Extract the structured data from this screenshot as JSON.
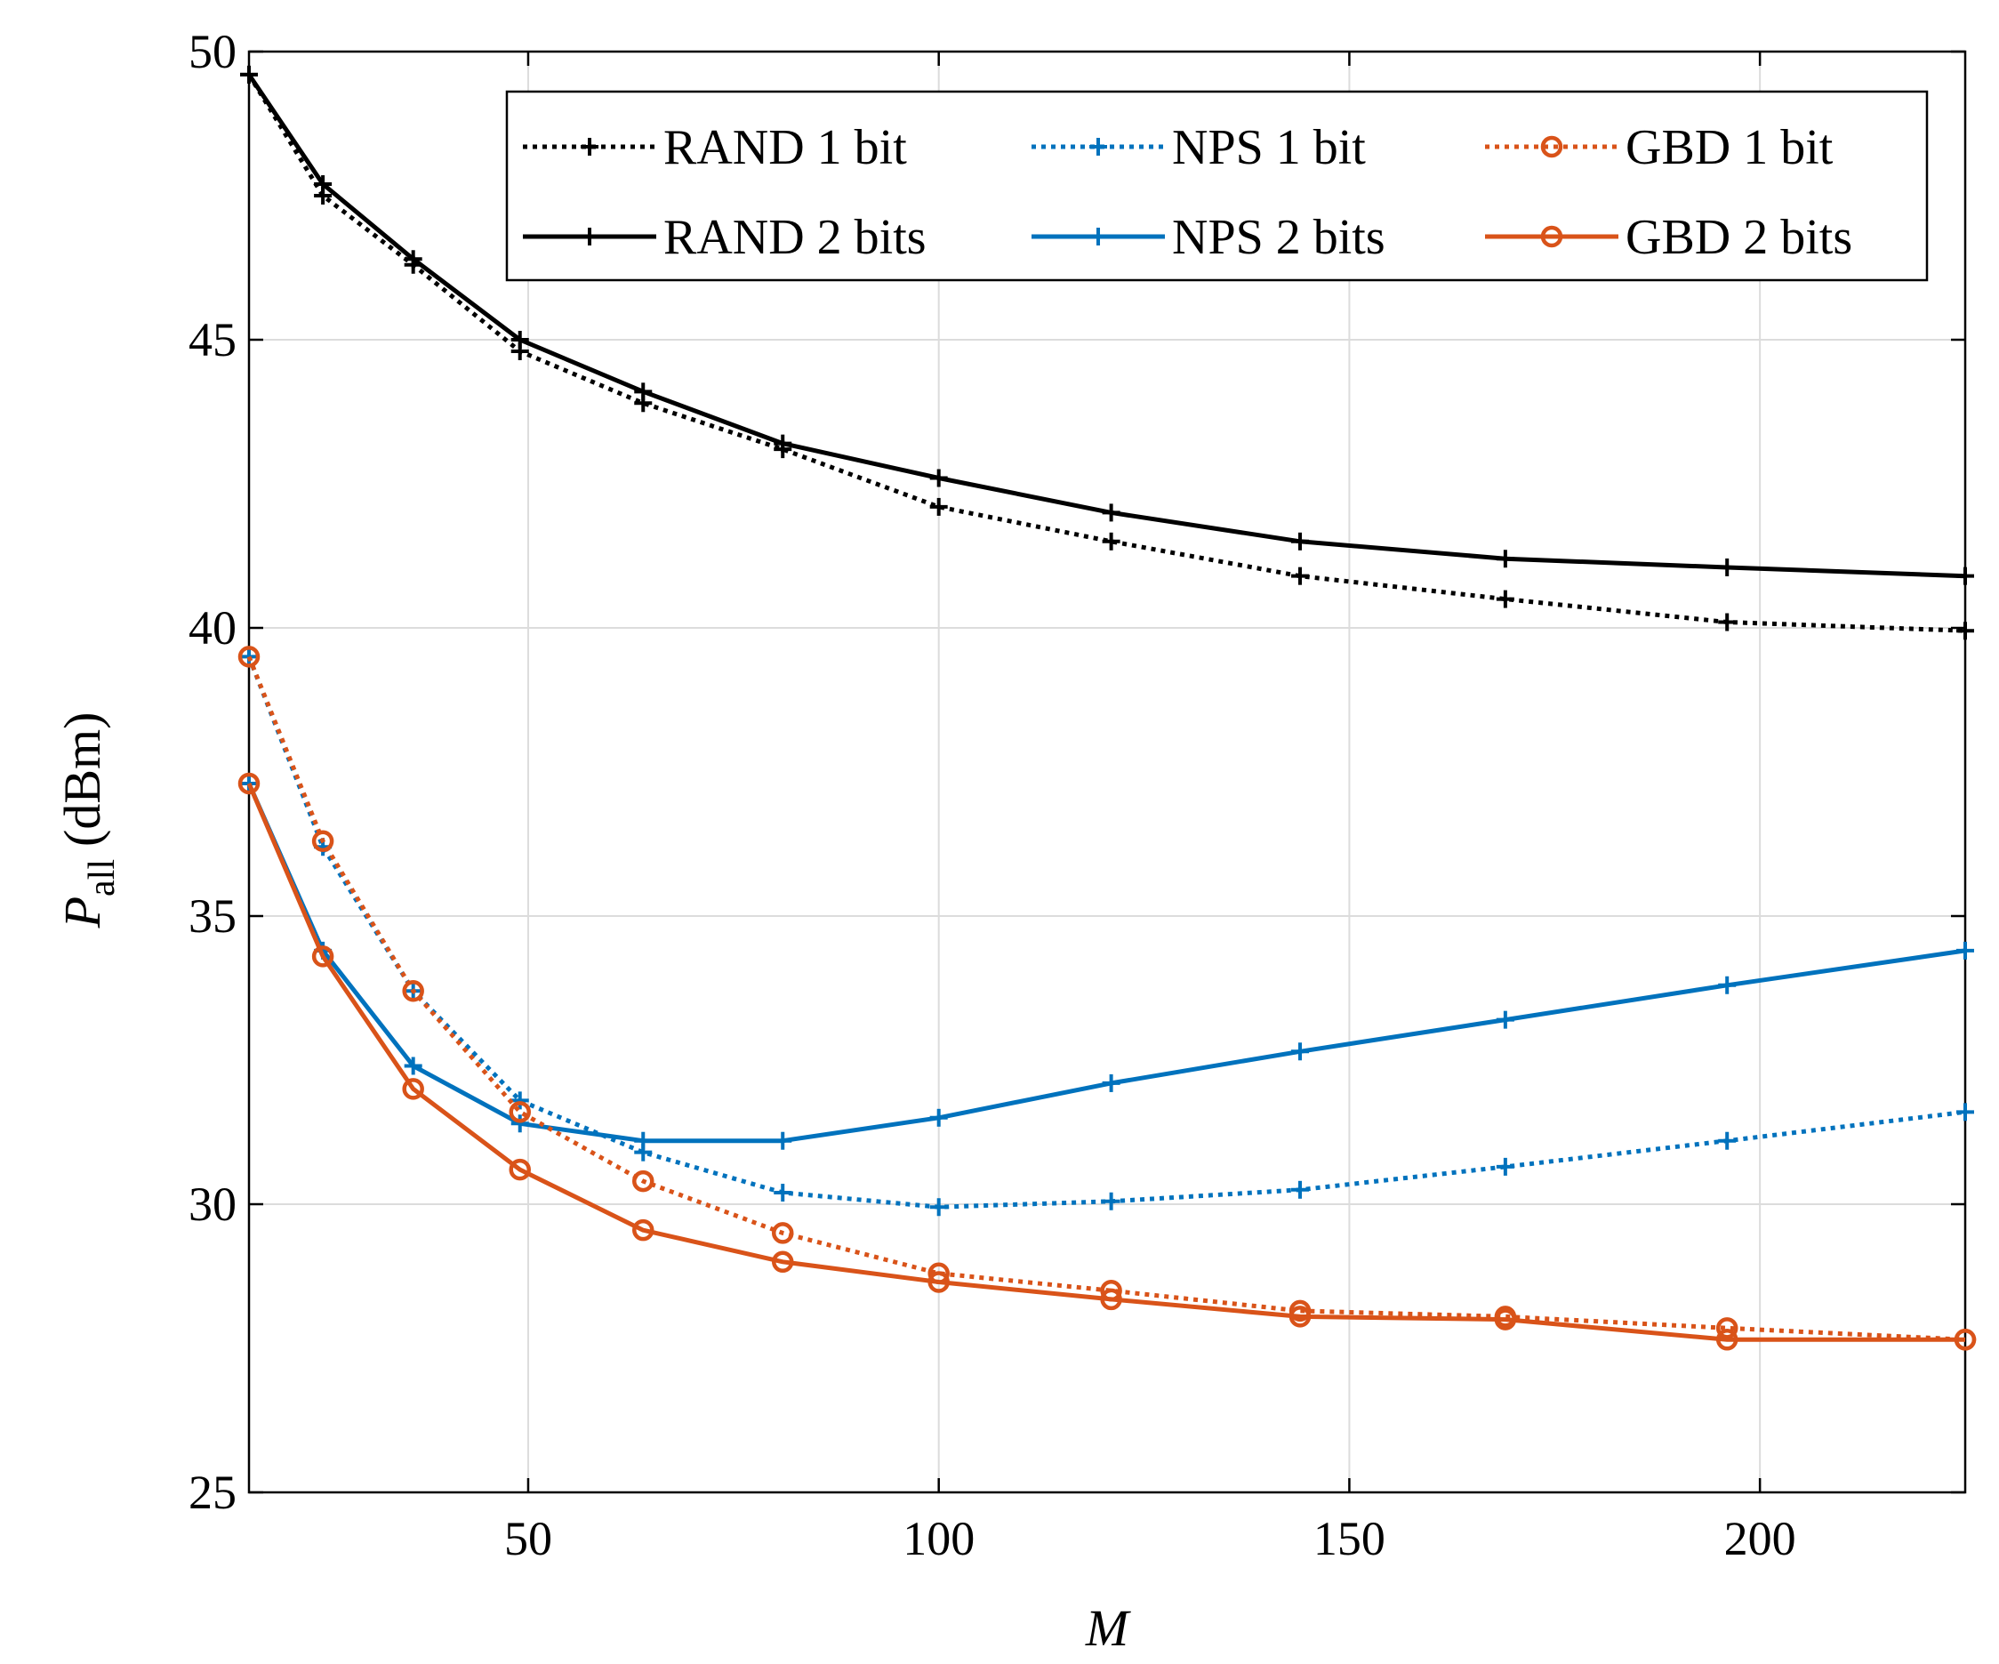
{
  "chart_data": {
    "type": "line",
    "xlabel": "M",
    "ylabel_main": "P",
    "ylabel_sub": "all",
    "ylabel_unit": "(dBm)",
    "xlim": [
      16,
      225
    ],
    "ylim": [
      25,
      50
    ],
    "xticks": [
      50,
      100,
      150,
      200
    ],
    "yticks": [
      25,
      30,
      35,
      40,
      45,
      50
    ],
    "grid": true,
    "legend_position": "top-right",
    "x": [
      16,
      25,
      36,
      49,
      64,
      81,
      100,
      121,
      144,
      169,
      196,
      225
    ],
    "series": [
      {
        "name": "RAND 1 bit",
        "color": "#000000",
        "dash": "dotted",
        "marker": "plus",
        "values": [
          49.6,
          47.5,
          46.3,
          44.8,
          43.9,
          43.1,
          42.1,
          41.5,
          40.9,
          40.5,
          40.1,
          39.95
        ]
      },
      {
        "name": "RAND 2 bits",
        "color": "#000000",
        "dash": "solid",
        "marker": "plus",
        "values": [
          49.6,
          47.7,
          46.4,
          45.0,
          44.1,
          43.2,
          42.6,
          42.0,
          41.5,
          41.2,
          41.05,
          40.9
        ]
      },
      {
        "name": "NPS 1 bit",
        "color": "#0072BD",
        "dash": "dotted",
        "marker": "plus",
        "values": [
          39.5,
          36.2,
          33.7,
          31.8,
          30.9,
          30.2,
          29.95,
          30.05,
          30.25,
          30.65,
          31.1,
          31.6
        ]
      },
      {
        "name": "NPS 2 bits",
        "color": "#0072BD",
        "dash": "solid",
        "marker": "plus",
        "values": [
          37.3,
          34.4,
          32.4,
          31.4,
          31.1,
          31.1,
          31.5,
          32.1,
          32.65,
          33.2,
          33.8,
          34.4
        ]
      },
      {
        "name": "GBD 1 bit",
        "color": "#D95319",
        "dash": "dotted",
        "marker": "circle",
        "values": [
          39.5,
          36.3,
          33.7,
          31.6,
          30.4,
          29.5,
          28.8,
          28.5,
          28.15,
          28.05,
          27.85,
          27.65
        ]
      },
      {
        "name": "GBD 2 bits",
        "color": "#D95319",
        "dash": "solid",
        "marker": "circle",
        "values": [
          37.3,
          34.3,
          32.0,
          30.6,
          29.55,
          29.0,
          28.65,
          28.35,
          28.05,
          28.0,
          27.65,
          27.65
        ]
      }
    ]
  }
}
